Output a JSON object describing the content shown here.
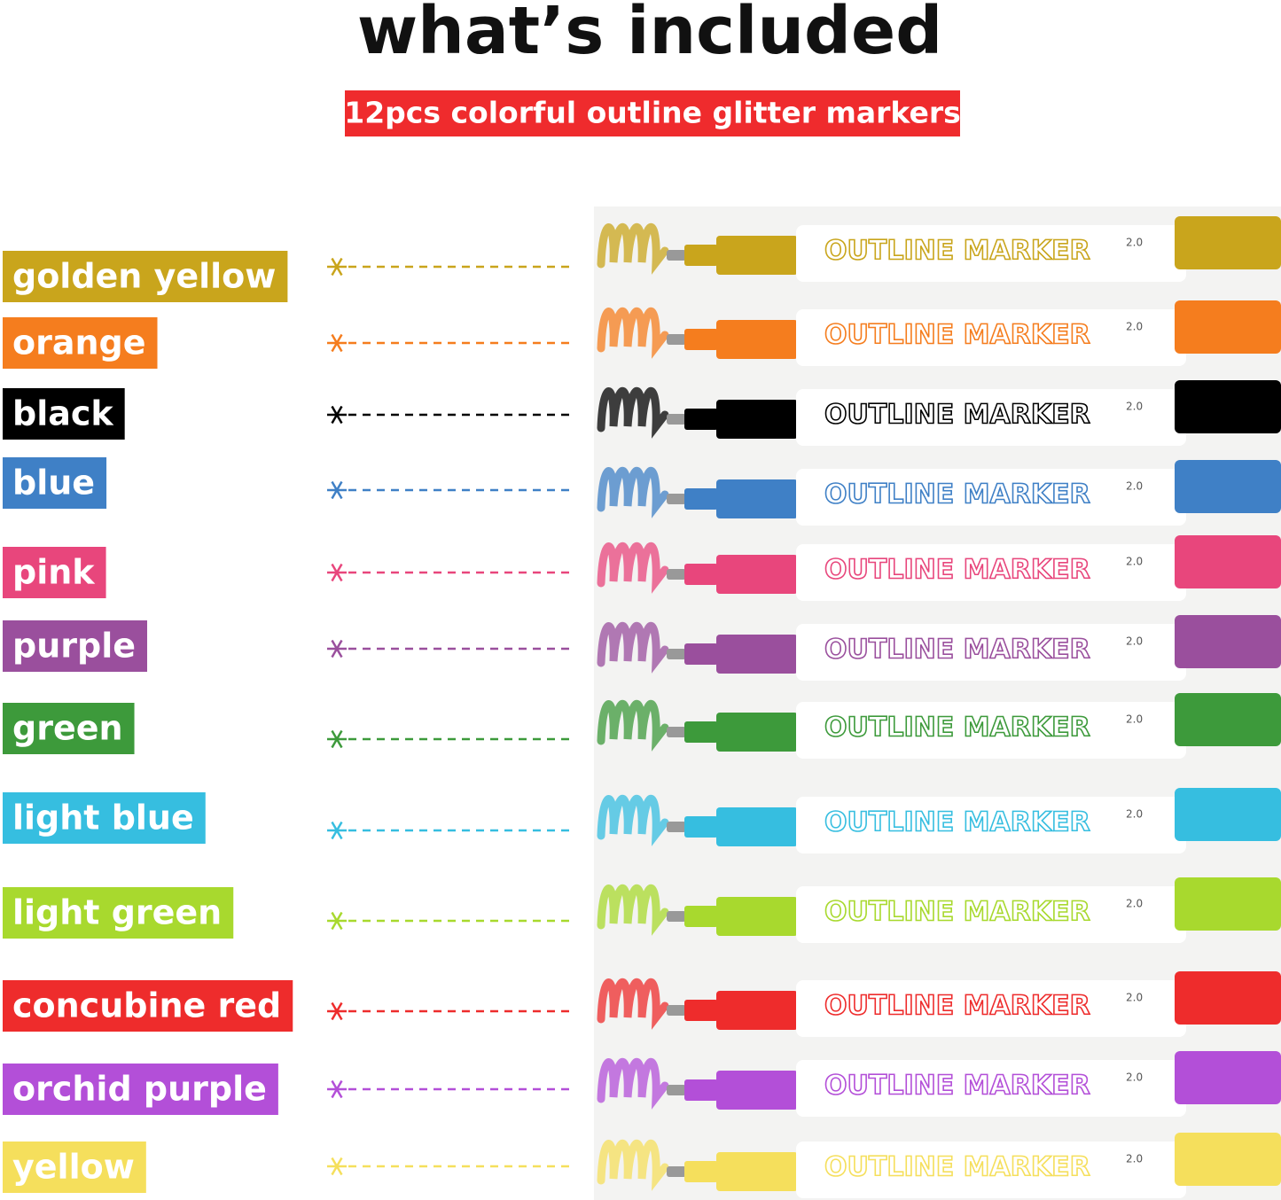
{
  "header": {
    "title": "what’s included",
    "subtitle": "12pcs colorful outline glitter markers"
  },
  "marker": {
    "brand_text": "OUTLINE MARKER",
    "tip_size": "2.0"
  },
  "items": [
    {
      "label": "golden yellow",
      "color": "#c9a51c"
    },
    {
      "label": "orange",
      "color": "#f57d1e"
    },
    {
      "label": "black",
      "color": "#000000"
    },
    {
      "label": "blue",
      "color": "#3f80c6"
    },
    {
      "label": "pink",
      "color": "#e8467c"
    },
    {
      "label": "purple",
      "color": "#9a4f9d"
    },
    {
      "label": "green",
      "color": "#3d9a3b"
    },
    {
      "label": "light blue",
      "color": "#36bee0"
    },
    {
      "label": "light green",
      "color": "#a8d92e"
    },
    {
      "label": "concubine red",
      "color": "#ee2c2c"
    },
    {
      "label": "orchid purple",
      "color": "#b34fd8"
    },
    {
      "label": "yellow",
      "color": "#f5df5c"
    }
  ]
}
